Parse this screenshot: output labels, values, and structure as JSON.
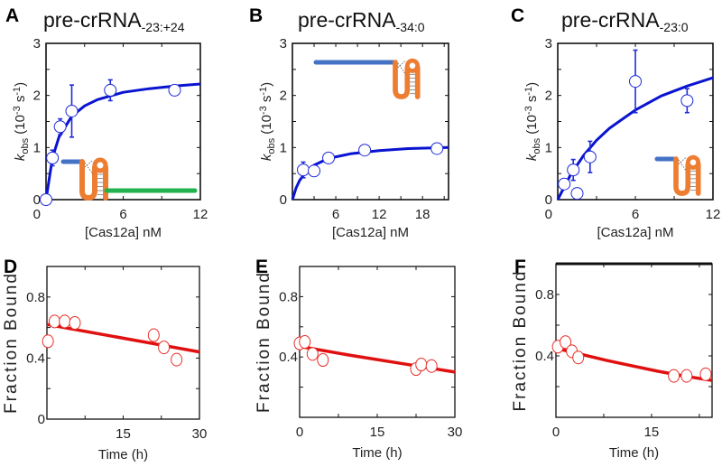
{
  "chart_data": [
    {
      "panel": "A",
      "type": "scatter",
      "title": [
        {
          "t": "pre-crRNA"
        },
        {
          "t": "-23:+24",
          "style": "sub"
        }
      ],
      "xlabel": "[Cas12a] nM",
      "ylabel": [
        {
          "t": "k",
          "style": "italic"
        },
        {
          "t": "obs",
          "style": "sub"
        },
        {
          "t": " (10"
        },
        {
          "t": "-3",
          "style": "sup"
        },
        {
          "t": " s"
        },
        {
          "t": "-1",
          "style": "sup"
        },
        {
          "t": ")"
        }
      ],
      "xlim": [
        0,
        12
      ],
      "ylim": [
        0,
        3
      ],
      "xticks": [
        "",
        "6",
        "12"
      ],
      "xtick_values": [
        0,
        6,
        12
      ],
      "yticks": [
        "0",
        "1",
        "2",
        "3"
      ],
      "ytick_values": [
        0,
        1,
        2,
        3
      ],
      "x": [
        0,
        0.5,
        1.1,
        2,
        5,
        10
      ],
      "y": [
        0,
        0.8,
        1.4,
        1.7,
        2.1,
        2.1
      ],
      "yerr": [
        0,
        0.15,
        0.15,
        0.5,
        0.2,
        0
      ],
      "fit": {
        "x": [
          0,
          0.5,
          1,
          2,
          3,
          4,
          6,
          8,
          10,
          12
        ],
        "y": [
          0,
          0.8,
          1.2,
          1.6,
          1.8,
          1.92,
          2.06,
          2.13,
          2.18,
          2.22
        ]
      },
      "inset": "pre-crRNA with 3' extension",
      "colors": {
        "points": "#1f2bd6",
        "fit": "#0a14d0",
        "spacer": "#4472c4",
        "repeat": "#ed7d31",
        "extension": "#22b14c"
      }
    },
    {
      "panel": "B",
      "type": "scatter",
      "title": [
        {
          "t": "pre-crRNA"
        },
        {
          "t": "-34:0",
          "style": "sub"
        }
      ],
      "xlabel": "[Cas12a] nM",
      "ylabel": [
        {
          "t": "k",
          "style": "italic"
        },
        {
          "t": "obs",
          "style": "sub"
        },
        {
          "t": " (10"
        },
        {
          "t": "-3",
          "style": "sup"
        },
        {
          "t": " s"
        },
        {
          "t": "-1",
          "style": "sup"
        },
        {
          "t": ")"
        }
      ],
      "xlim": [
        0,
        21.6
      ],
      "ylim": [
        0,
        3
      ],
      "xticks": [
        "6",
        "12",
        "18"
      ],
      "xtick_values": [
        6,
        12,
        18
      ],
      "yticks": [
        "0",
        "1",
        "2",
        "3"
      ],
      "ytick_values": [
        0,
        1,
        2,
        3
      ],
      "x": [
        1.5,
        3,
        5,
        10,
        20
      ],
      "y": [
        0.57,
        0.55,
        0.8,
        0.95,
        0.98
      ],
      "yerr": [
        0.15,
        0.1,
        0,
        0,
        0
      ],
      "fit": {
        "x": [
          0,
          0.5,
          1,
          2,
          3,
          5,
          8,
          12,
          16,
          21.6
        ],
        "y": [
          0,
          0.22,
          0.37,
          0.55,
          0.66,
          0.79,
          0.88,
          0.94,
          0.98,
          1.0
        ]
      },
      "colors": {
        "points": "#1f2bd6",
        "fit": "#0a14d0",
        "spacer": "#4472c4",
        "repeat": "#ed7d31"
      }
    },
    {
      "panel": "C",
      "type": "scatter",
      "title": [
        {
          "t": "pre-crRNA"
        },
        {
          "t": "-23:0",
          "style": "sub"
        }
      ],
      "xlabel": "[Cas12a] nM",
      "ylabel": [
        {
          "t": "k",
          "style": "italic"
        },
        {
          "t": "obs",
          "style": "sub"
        },
        {
          "t": " (10"
        },
        {
          "t": "-3",
          "style": "sup"
        },
        {
          "t": " s"
        },
        {
          "t": "-1",
          "style": "sup"
        },
        {
          "t": ")"
        }
      ],
      "xlim": [
        0,
        12
      ],
      "ylim": [
        0,
        3
      ],
      "xticks": [
        "",
        "6",
        "12"
      ],
      "xtick_values": [
        0,
        6,
        12
      ],
      "yticks": [
        "0",
        "1",
        "2",
        "3"
      ],
      "ytick_values": [
        0,
        1,
        2,
        3
      ],
      "x": [
        0.5,
        1.2,
        1.5,
        2.5,
        6,
        10
      ],
      "y": [
        0.3,
        0.57,
        0.12,
        0.82,
        2.27,
        1.9
      ],
      "yerr": [
        0,
        0.2,
        0,
        0.3,
        0.6,
        0.23
      ],
      "fit": {
        "x": [
          0,
          1,
          2,
          3,
          4,
          6,
          8,
          10,
          12
        ],
        "y": [
          0,
          0.48,
          0.85,
          1.14,
          1.37,
          1.72,
          1.99,
          2.18,
          2.34
        ]
      },
      "colors": {
        "points": "#1f2bd6",
        "fit": "#0a14d0",
        "spacer": "#4472c4",
        "repeat": "#ed7d31"
      }
    },
    {
      "panel": "D",
      "type": "scatter",
      "xlabel": "Time (h)",
      "ylabel": [
        {
          "t": "Fraction Bound"
        }
      ],
      "xlim": [
        0,
        30
      ],
      "ylim": [
        0,
        1
      ],
      "xticks": [
        "15",
        "30"
      ],
      "xtick_values": [
        15,
        30
      ],
      "yticks": [
        "0",
        "0.4",
        "0.8"
      ],
      "ytick_values": [
        0,
        0.4,
        0.8
      ],
      "x": [
        0.2,
        1.5,
        3.5,
        5.5,
        21,
        23,
        25.5
      ],
      "y": [
        0.51,
        0.64,
        0.64,
        0.63,
        0.55,
        0.47,
        0.39
      ],
      "fit": {
        "x": [
          0,
          30
        ],
        "y": [
          0.62,
          0.44
        ]
      },
      "colors": {
        "points": "#e8302a",
        "fit": "#e01010"
      }
    },
    {
      "panel": "E",
      "type": "scatter",
      "xlabel": "Time (h)",
      "ylabel": [
        {
          "t": "Fraction Bound"
        }
      ],
      "xlim": [
        0,
        30
      ],
      "ylim": [
        0,
        1
      ],
      "xticks": [
        "0",
        "15",
        "30"
      ],
      "xtick_values": [
        0,
        15,
        30
      ],
      "yticks": [
        "",
        "0.4",
        "0.8"
      ],
      "ytick_values": [
        0,
        0.4,
        0.8
      ],
      "x": [
        0,
        1,
        2.5,
        4.5,
        22.5,
        23.5,
        25.5
      ],
      "y": [
        0.49,
        0.5,
        0.42,
        0.38,
        0.32,
        0.35,
        0.34
      ],
      "fit": {
        "x": [
          0,
          10,
          20,
          30
        ],
        "y": [
          0.47,
          0.41,
          0.355,
          0.3
        ]
      },
      "colors": {
        "points": "#e8302a",
        "fit": "#e01010"
      }
    },
    {
      "panel": "F",
      "type": "scatter",
      "xlabel": "Time (h)",
      "ylabel": [
        {
          "t": "Fraction Bound"
        }
      ],
      "xlim": [
        0,
        24.5
      ],
      "ylim": [
        0,
        1
      ],
      "xticks": [
        "0",
        "15"
      ],
      "xtick_values": [
        0,
        15
      ],
      "yticks": [
        "",
        "0.4",
        "0.8"
      ],
      "ytick_values": [
        0,
        0.4,
        0.8
      ],
      "x": [
        0.3,
        1.5,
        2.5,
        3.5,
        18.5,
        20.5,
        23.5
      ],
      "y": [
        0.46,
        0.49,
        0.43,
        0.39,
        0.27,
        0.27,
        0.28
      ],
      "fit": {
        "x": [
          0,
          4,
          8,
          12,
          16,
          20,
          24.5
        ],
        "y": [
          0.45,
          0.41,
          0.37,
          0.335,
          0.3,
          0.27,
          0.24
        ]
      },
      "colors": {
        "points": "#e8302a",
        "fit": "#e01010"
      }
    }
  ]
}
